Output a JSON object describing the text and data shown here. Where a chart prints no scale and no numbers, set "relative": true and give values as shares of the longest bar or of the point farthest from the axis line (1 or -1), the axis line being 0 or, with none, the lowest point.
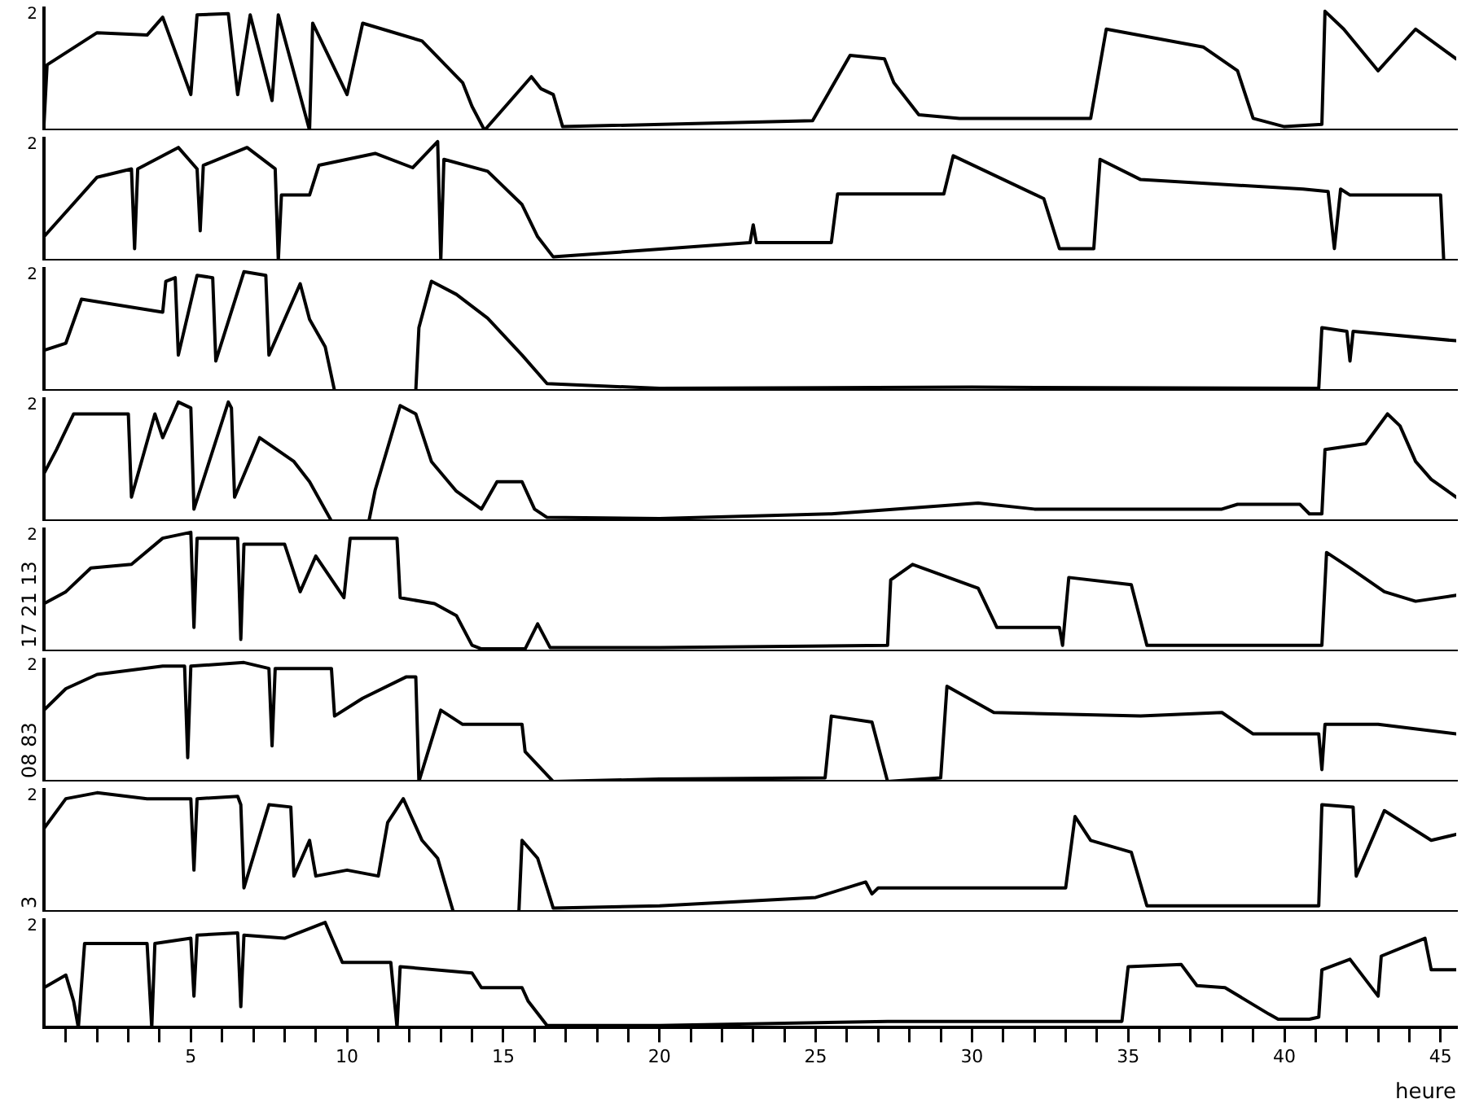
{
  "chart_data": [
    {
      "type": "line",
      "relative": true,
      "xlim": [
        0.3,
        45.5
      ],
      "tick_labels": false,
      "grid": false,
      "legend": false,
      "marker": "none",
      "line_style": "solid",
      "annotations": [
        "2"
      ],
      "series": [
        {
          "color": "#000000",
          "x": [
            0.3,
            0.4,
            2.0,
            3.6,
            4.1,
            5.0,
            5.2,
            6.2,
            6.5,
            6.9,
            7.6,
            7.8,
            8.8,
            8.9,
            10.0,
            10.5,
            12.4,
            13.7,
            14.0,
            14.4,
            15.9,
            16.2,
            16.6,
            16.9,
            24.9,
            26.1,
            27.2,
            27.5,
            28.3,
            29.6,
            33.8,
            34.3,
            37.4,
            38.5,
            39.0,
            40.0,
            41.2,
            41.3,
            41.9,
            43.0,
            44.2,
            45.5
          ],
          "values": [
            0.05,
            0.55,
            0.82,
            0.8,
            0.95,
            0.3,
            0.97,
            0.98,
            0.3,
            0.97,
            0.25,
            0.97,
            0.0,
            0.9,
            0.3,
            0.9,
            0.75,
            0.4,
            0.2,
            0.0,
            0.45,
            0.35,
            0.3,
            0.03,
            0.08,
            0.63,
            0.6,
            0.4,
            0.13,
            0.1,
            0.1,
            0.85,
            0.7,
            0.5,
            0.1,
            0.03,
            0.05,
            1.0,
            0.85,
            0.5,
            0.85,
            0.6
          ]
        }
      ]
    },
    {
      "type": "line",
      "relative": true,
      "xlim": [
        0.3,
        45.5
      ],
      "tick_labels": false,
      "grid": false,
      "legend": false,
      "marker": "none",
      "line_style": "solid",
      "annotations": [
        "2"
      ],
      "series": [
        {
          "color": "#000000",
          "x": [
            0.3,
            2.0,
            3.1,
            3.2,
            3.3,
            4.6,
            5.2,
            5.3,
            5.4,
            6.8,
            7.7,
            7.8,
            7.9,
            8.8,
            9.1,
            10.9,
            12.1,
            12.9,
            13.0,
            13.1,
            14.5,
            15.6,
            16.1,
            16.6,
            22.9,
            23.0,
            23.1,
            25.5,
            25.7,
            29.1,
            29.4,
            32.3,
            32.8,
            33.9,
            34.1,
            35.4,
            40.6,
            41.4,
            41.6,
            41.8,
            42.1,
            45.0,
            45.1
          ],
          "values": [
            0.2,
            0.7,
            0.77,
            0.1,
            0.77,
            0.95,
            0.77,
            0.25,
            0.8,
            0.95,
            0.77,
            0.0,
            0.55,
            0.55,
            0.8,
            0.9,
            0.78,
            1.0,
            0.0,
            0.85,
            0.75,
            0.47,
            0.2,
            0.03,
            0.15,
            0.3,
            0.15,
            0.15,
            0.56,
            0.56,
            0.88,
            0.52,
            0.1,
            0.1,
            0.85,
            0.68,
            0.6,
            0.58,
            0.1,
            0.6,
            0.55,
            0.55,
            0.0
          ]
        }
      ]
    },
    {
      "type": "line",
      "relative": true,
      "xlim": [
        0.3,
        45.5
      ],
      "tick_labels": false,
      "grid": false,
      "legend": false,
      "marker": "none",
      "line_style": "solid",
      "annotations": [
        "2"
      ],
      "series": [
        {
          "color": "#000000",
          "x": [
            0.3,
            1.0,
            1.5,
            4.1,
            4.2,
            4.5,
            4.6,
            5.2,
            5.7,
            5.8,
            6.7,
            7.4,
            7.5,
            8.5,
            8.8,
            9.3,
            9.6,
            12.2,
            12.3,
            12.7,
            13.5,
            14.5,
            15.6,
            16.4,
            20,
            30,
            41.1,
            41.2,
            42.0,
            42.1,
            42.2,
            45.5
          ],
          "values": [
            0.34,
            0.4,
            0.77,
            0.66,
            0.92,
            0.95,
            0.3,
            0.97,
            0.95,
            0.25,
            1.0,
            0.97,
            0.3,
            0.9,
            0.6,
            0.37,
            0.0,
            0.0,
            0.53,
            0.92,
            0.81,
            0.61,
            0.3,
            0.06,
            0.02,
            0.03,
            0.02,
            0.53,
            0.5,
            0.25,
            0.5,
            0.42
          ]
        }
      ]
    },
    {
      "type": "line",
      "relative": true,
      "xlim": [
        0.3,
        45.5
      ],
      "tick_labels": false,
      "grid": false,
      "legend": false,
      "marker": "none",
      "line_style": "solid",
      "annotations": [
        "2"
      ],
      "series": [
        {
          "color": "#000000",
          "x": [
            0.3,
            0.7,
            1.25,
            3.0,
            3.1,
            3.85,
            4.1,
            4.6,
            5.0,
            5.1,
            6.2,
            6.3,
            6.4,
            7.2,
            8.3,
            8.8,
            9.5,
            10.7,
            10.9,
            11.7,
            12.2,
            12.7,
            13.5,
            14.3,
            14.8,
            15.6,
            16.0,
            16.4,
            20.0,
            25.5,
            30.2,
            32.0,
            38.0,
            38.5,
            40.5,
            40.8,
            41.2,
            41.3,
            42.6,
            43.3,
            43.7,
            44.2,
            44.7,
            45.5
          ],
          "values": [
            0.4,
            0.6,
            0.9,
            0.9,
            0.2,
            0.9,
            0.7,
            1.0,
            0.95,
            0.1,
            1.0,
            0.95,
            0.2,
            0.7,
            0.5,
            0.33,
            0.0,
            0.0,
            0.26,
            0.97,
            0.9,
            0.5,
            0.25,
            0.1,
            0.33,
            0.33,
            0.1,
            0.03,
            0.02,
            0.06,
            0.15,
            0.1,
            0.1,
            0.14,
            0.14,
            0.06,
            0.06,
            0.6,
            0.65,
            0.9,
            0.8,
            0.5,
            0.35,
            0.2
          ]
        }
      ]
    },
    {
      "type": "line",
      "relative": true,
      "xlim": [
        0.3,
        45.5
      ],
      "tick_labels": false,
      "grid": false,
      "legend": false,
      "marker": "none",
      "line_style": "solid",
      "annotations": [
        "2",
        "17 21 13"
      ],
      "series": [
        {
          "color": "#000000",
          "x": [
            0.3,
            1.0,
            1.8,
            3.1,
            4.1,
            5.0,
            5.1,
            5.2,
            6.5,
            6.6,
            6.7,
            8.0,
            8.5,
            9.0,
            9.9,
            10.1,
            11.6,
            11.7,
            12.8,
            13.5,
            14.0,
            14.3,
            15.7,
            16.1,
            16.5,
            20.0,
            27.3,
            27.4,
            28.1,
            30.2,
            30.8,
            32.8,
            32.9,
            33.1,
            35.1,
            35.6,
            41.2,
            41.35,
            42.1,
            43.2,
            44.2,
            45.5
          ],
          "values": [
            0.4,
            0.5,
            0.7,
            0.73,
            0.95,
            1.0,
            0.2,
            0.95,
            0.95,
            0.1,
            0.9,
            0.9,
            0.5,
            0.8,
            0.45,
            0.95,
            0.95,
            0.45,
            0.4,
            0.3,
            0.05,
            0.02,
            0.02,
            0.23,
            0.03,
            0.03,
            0.05,
            0.6,
            0.73,
            0.53,
            0.2,
            0.2,
            0.05,
            0.62,
            0.56,
            0.05,
            0.05,
            0.83,
            0.7,
            0.5,
            0.42,
            0.47
          ]
        }
      ]
    },
    {
      "type": "line",
      "relative": true,
      "xlim": [
        0.3,
        45.5
      ],
      "tick_labels": false,
      "grid": false,
      "legend": false,
      "marker": "none",
      "line_style": "solid",
      "annotations": [
        "2",
        "08 83"
      ],
      "series": [
        {
          "color": "#000000",
          "x": [
            0.3,
            1.0,
            2.0,
            4.1,
            4.8,
            4.9,
            5.0,
            6.7,
            7.5,
            7.6,
            7.7,
            9.5,
            9.6,
            10.5,
            11.9,
            12.2,
            12.3,
            13.0,
            13.7,
            15.6,
            15.7,
            16.6,
            20.0,
            25.3,
            25.5,
            26.8,
            27.3,
            29.0,
            29.2,
            30.7,
            35.4,
            38.0,
            39.0,
            41.1,
            41.2,
            41.3,
            43.0,
            45.5
          ],
          "values": [
            0.6,
            0.78,
            0.9,
            0.97,
            0.97,
            0.2,
            0.97,
            1.0,
            0.95,
            0.3,
            0.95,
            0.95,
            0.55,
            0.7,
            0.88,
            0.88,
            0.0,
            0.6,
            0.48,
            0.48,
            0.25,
            0.0,
            0.02,
            0.03,
            0.55,
            0.5,
            0.0,
            0.03,
            0.8,
            0.58,
            0.55,
            0.58,
            0.4,
            0.4,
            0.1,
            0.48,
            0.48,
            0.4
          ]
        }
      ]
    },
    {
      "type": "line",
      "relative": true,
      "xlim": [
        0.3,
        45.5
      ],
      "tick_labels": false,
      "grid": false,
      "legend": false,
      "marker": "none",
      "line_style": "solid",
      "annotations": [
        "2",
        "3"
      ],
      "series": [
        {
          "color": "#000000",
          "x": [
            0.3,
            1.0,
            2.0,
            3.6,
            5.0,
            5.1,
            5.2,
            6.5,
            6.6,
            6.7,
            7.5,
            8.2,
            8.3,
            8.8,
            9.0,
            10.0,
            11.0,
            11.3,
            11.8,
            12.4,
            12.9,
            13.4,
            15.5,
            15.6,
            16.1,
            16.6,
            20.0,
            25.0,
            26.6,
            26.8,
            27.0,
            33.0,
            33.3,
            33.8,
            35.1,
            35.6,
            41.1,
            41.2,
            42.2,
            42.3,
            43.2,
            44.7,
            45.5
          ],
          "values": [
            0.7,
            0.95,
            1.0,
            0.95,
            0.95,
            0.35,
            0.95,
            0.97,
            0.9,
            0.2,
            0.9,
            0.88,
            0.3,
            0.6,
            0.3,
            0.35,
            0.3,
            0.75,
            0.95,
            0.6,
            0.45,
            0.0,
            0.0,
            0.6,
            0.45,
            0.03,
            0.05,
            0.12,
            0.25,
            0.15,
            0.2,
            0.2,
            0.8,
            0.6,
            0.5,
            0.05,
            0.05,
            0.9,
            0.88,
            0.3,
            0.85,
            0.6,
            0.65
          ]
        }
      ]
    },
    {
      "type": "line",
      "relative": true,
      "xlim": [
        0.3,
        45.5
      ],
      "tick_labels": "x",
      "grid": false,
      "legend": false,
      "marker": "none",
      "line_style": "solid",
      "annotations": [
        "2"
      ],
      "xlabel": "heure",
      "xticks": [
        {
          "value": 1,
          "label": null
        },
        {
          "value": 2,
          "label": null
        },
        {
          "value": 3,
          "label": null
        },
        {
          "value": 4,
          "label": null
        },
        5,
        {
          "value": 6,
          "label": null
        },
        {
          "value": 7,
          "label": null
        },
        {
          "value": 8,
          "label": null
        },
        {
          "value": 9,
          "label": null
        },
        10,
        {
          "value": 11,
          "label": null
        },
        {
          "value": 12,
          "label": null
        },
        {
          "value": 13,
          "label": null
        },
        {
          "value": 14,
          "label": null
        },
        15,
        {
          "value": 16,
          "label": null
        },
        {
          "value": 17,
          "label": null
        },
        {
          "value": 18,
          "label": null
        },
        {
          "value": 19,
          "label": null
        },
        20,
        {
          "value": 21,
          "label": null
        },
        {
          "value": 22,
          "label": null
        },
        {
          "value": 23,
          "label": null
        },
        {
          "value": 24,
          "label": null
        },
        25,
        {
          "value": 26,
          "label": null
        },
        {
          "value": 27,
          "label": null
        },
        {
          "value": 28,
          "label": null
        },
        {
          "value": 29,
          "label": null
        },
        30,
        {
          "value": 31,
          "label": null
        },
        {
          "value": 32,
          "label": null
        },
        {
          "value": 33,
          "label": null
        },
        {
          "value": 34,
          "label": null
        },
        35,
        {
          "value": 36,
          "label": null
        },
        {
          "value": 37,
          "label": null
        },
        {
          "value": 38,
          "label": null
        },
        {
          "value": 39,
          "label": null
        },
        40,
        {
          "value": 41,
          "label": null
        },
        {
          "value": 42,
          "label": null
        },
        {
          "value": 43,
          "label": null
        },
        {
          "value": 44,
          "label": null
        },
        45
      ],
      "series": [
        {
          "color": "#000000",
          "x": [
            0.3,
            1.0,
            1.25,
            1.4,
            1.6,
            3.6,
            3.75,
            3.85,
            5.0,
            5.1,
            5.2,
            6.5,
            6.6,
            6.7,
            8.0,
            9.3,
            9.85,
            11.4,
            11.6,
            11.7,
            14.0,
            14.3,
            15.6,
            15.8,
            16.4,
            20.0,
            27.3,
            34.8,
            35.0,
            36.7,
            37.2,
            38.1,
            39.5,
            39.8,
            40.8,
            41.1,
            41.2,
            42.1,
            43.0,
            43.1,
            44.5,
            44.7,
            45.5
          ],
          "values": [
            0.38,
            0.5,
            0.25,
            0.0,
            0.8,
            0.8,
            0.0,
            0.8,
            0.85,
            0.3,
            0.88,
            0.9,
            0.2,
            0.88,
            0.85,
            1.0,
            0.62,
            0.62,
            0.0,
            0.58,
            0.52,
            0.38,
            0.38,
            0.25,
            0.02,
            0.02,
            0.06,
            0.06,
            0.58,
            0.6,
            0.4,
            0.38,
            0.13,
            0.08,
            0.08,
            0.1,
            0.55,
            0.65,
            0.3,
            0.68,
            0.85,
            0.55,
            0.55
          ]
        }
      ]
    }
  ]
}
